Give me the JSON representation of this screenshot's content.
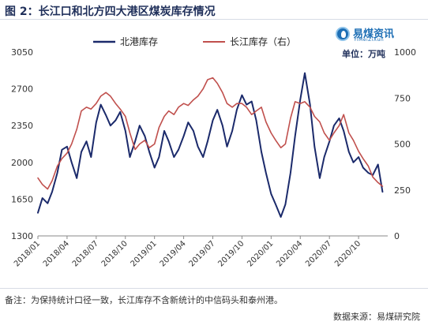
{
  "header": {
    "title": "图 2：长江口和北方四大港区煤炭库存情况"
  },
  "brand": {
    "name": "易煤资讯",
    "sub": "YiMeiZiXun",
    "unit": "单位：万吨"
  },
  "footer": {
    "note": "备注：为保持统计口径一致，长江库存不含新统计的中信码头和泰州港。",
    "source": "数据来源：易煤研究院"
  },
  "colors": {
    "north": "#1b2a6b",
    "yangtze": "#c0504d"
  },
  "chart_data": {
    "type": "line",
    "title": "图 2：长江口和北方四大港区煤炭库存情况",
    "unit": "单位：万吨",
    "x_ticks": [
      "2018/01",
      "2018/04",
      "2018/07",
      "2018/10",
      "2019/01",
      "2019/04",
      "2019/07",
      "2019/10",
      "2020/01",
      "2020/04",
      "2020/07",
      "2020/10"
    ],
    "x_range": [
      "2018/01",
      "2020/12"
    ],
    "y_left": {
      "min": 1300,
      "max": 3050,
      "ticks": [
        1300,
        1650,
        2000,
        2350,
        2700,
        3050
      ]
    },
    "y_right": {
      "min": 0,
      "max": 1000,
      "ticks": [
        0,
        250,
        500,
        750,
        1000
      ]
    },
    "legend_position": "top-center",
    "grid": false,
    "series": [
      {
        "name": "北港库存",
        "axis": "left",
        "points": [
          [
            "2018/01",
            1520
          ],
          [
            "2018/01/15",
            1660
          ],
          [
            "2018/02",
            1610
          ],
          [
            "2018/02/15",
            1720
          ],
          [
            "2018/03",
            1900
          ],
          [
            "2018/03/15",
            2120
          ],
          [
            "2018/04",
            2150
          ],
          [
            "2018/04/15",
            2000
          ],
          [
            "2018/05",
            1850
          ],
          [
            "2018/05/15",
            2100
          ],
          [
            "2018/06",
            2200
          ],
          [
            "2018/06/15",
            2050
          ],
          [
            "2018/07",
            2380
          ],
          [
            "2018/07/15",
            2550
          ],
          [
            "2018/08",
            2450
          ],
          [
            "2018/08/15",
            2350
          ],
          [
            "2018/09",
            2400
          ],
          [
            "2018/09/15",
            2480
          ],
          [
            "2018/10",
            2300
          ],
          [
            "2018/10/15",
            2050
          ],
          [
            "2018/11",
            2200
          ],
          [
            "2018/11/15",
            2350
          ],
          [
            "2018/12",
            2250
          ],
          [
            "2018/12/15",
            2100
          ],
          [
            "2019/01",
            1950
          ],
          [
            "2019/01/15",
            2050
          ],
          [
            "2019/02",
            2300
          ],
          [
            "2019/02/15",
            2200
          ],
          [
            "2019/03",
            2050
          ],
          [
            "2019/03/15",
            2120
          ],
          [
            "2019/04",
            2250
          ],
          [
            "2019/04/15",
            2380
          ],
          [
            "2019/05",
            2300
          ],
          [
            "2019/05/15",
            2150
          ],
          [
            "2019/06",
            2050
          ],
          [
            "2019/06/15",
            2200
          ],
          [
            "2019/07",
            2400
          ],
          [
            "2019/07/15",
            2500
          ],
          [
            "2019/08",
            2350
          ],
          [
            "2019/08/15",
            2150
          ],
          [
            "2019/09",
            2300
          ],
          [
            "2019/09/15",
            2500
          ],
          [
            "2019/10",
            2640
          ],
          [
            "2019/10/15",
            2550
          ],
          [
            "2019/11",
            2580
          ],
          [
            "2019/11/15",
            2400
          ],
          [
            "2019/12",
            2100
          ],
          [
            "2019/12/15",
            1900
          ],
          [
            "2020/01",
            1700
          ],
          [
            "2020/01/15",
            1600
          ],
          [
            "2020/02",
            1480
          ],
          [
            "2020/02/15",
            1600
          ],
          [
            "2020/03",
            1900
          ],
          [
            "2020/03/15",
            2250
          ],
          [
            "2020/04",
            2600
          ],
          [
            "2020/04/15",
            2850
          ],
          [
            "2020/05",
            2550
          ],
          [
            "2020/05/15",
            2150
          ],
          [
            "2020/06",
            1850
          ],
          [
            "2020/06/15",
            2050
          ],
          [
            "2020/07",
            2200
          ],
          [
            "2020/07/15",
            2350
          ],
          [
            "2020/08",
            2420
          ],
          [
            "2020/08/15",
            2300
          ],
          [
            "2020/09",
            2100
          ],
          [
            "2020/09/15",
            2000
          ],
          [
            "2020/10",
            2050
          ],
          [
            "2020/10/15",
            1950
          ],
          [
            "2020/11",
            1900
          ],
          [
            "2020/11/15",
            1880
          ],
          [
            "2020/12",
            1980
          ],
          [
            "2020/12/15",
            1720
          ]
        ]
      },
      {
        "name": "长江库存（右）",
        "axis": "right",
        "points": [
          [
            "2018/01",
            315
          ],
          [
            "2018/01/15",
            280
          ],
          [
            "2018/02",
            255
          ],
          [
            "2018/02/15",
            300
          ],
          [
            "2018/03",
            380
          ],
          [
            "2018/03/15",
            420
          ],
          [
            "2018/04",
            450
          ],
          [
            "2018/04/15",
            500
          ],
          [
            "2018/05",
            580
          ],
          [
            "2018/05/15",
            680
          ],
          [
            "2018/06",
            700
          ],
          [
            "2018/06/15",
            690
          ],
          [
            "2018/07",
            720
          ],
          [
            "2018/07/15",
            760
          ],
          [
            "2018/08",
            780
          ],
          [
            "2018/08/15",
            760
          ],
          [
            "2018/09",
            720
          ],
          [
            "2018/09/15",
            690
          ],
          [
            "2018/10",
            650
          ],
          [
            "2018/10/15",
            560
          ],
          [
            "2018/11",
            470
          ],
          [
            "2018/11/15",
            500
          ],
          [
            "2018/12",
            520
          ],
          [
            "2018/12/15",
            480
          ],
          [
            "2019/01",
            500
          ],
          [
            "2019/01/15",
            590
          ],
          [
            "2019/02",
            650
          ],
          [
            "2019/02/15",
            680
          ],
          [
            "2019/03",
            660
          ],
          [
            "2019/03/15",
            700
          ],
          [
            "2019/04",
            720
          ],
          [
            "2019/04/15",
            710
          ],
          [
            "2019/05",
            740
          ],
          [
            "2019/05/15",
            760
          ],
          [
            "2019/06",
            800
          ],
          [
            "2019/06/15",
            850
          ],
          [
            "2019/07",
            860
          ],
          [
            "2019/07/15",
            830
          ],
          [
            "2019/08",
            780
          ],
          [
            "2019/08/15",
            720
          ],
          [
            "2019/09",
            700
          ],
          [
            "2019/09/15",
            720
          ],
          [
            "2019/10",
            720
          ],
          [
            "2019/10/15",
            700
          ],
          [
            "2019/11",
            660
          ],
          [
            "2019/11/15",
            680
          ],
          [
            "2019/12",
            700
          ],
          [
            "2019/12/15",
            620
          ],
          [
            "2020/01",
            560
          ],
          [
            "2020/01/15",
            520
          ],
          [
            "2020/02",
            480
          ],
          [
            "2020/02/15",
            500
          ],
          [
            "2020/03",
            640
          ],
          [
            "2020/03/15",
            730
          ],
          [
            "2020/04",
            720
          ],
          [
            "2020/04/15",
            730
          ],
          [
            "2020/05",
            700
          ],
          [
            "2020/05/15",
            650
          ],
          [
            "2020/06",
            620
          ],
          [
            "2020/06/15",
            560
          ],
          [
            "2020/07",
            520
          ],
          [
            "2020/07/15",
            560
          ],
          [
            "2020/08",
            600
          ],
          [
            "2020/08/15",
            660
          ],
          [
            "2020/09",
            560
          ],
          [
            "2020/09/15",
            520
          ],
          [
            "2020/10",
            460
          ],
          [
            "2020/10/15",
            420
          ],
          [
            "2020/11",
            380
          ],
          [
            "2020/11/15",
            320
          ],
          [
            "2020/12",
            290
          ],
          [
            "2020/12/15",
            270
          ]
        ]
      }
    ]
  }
}
